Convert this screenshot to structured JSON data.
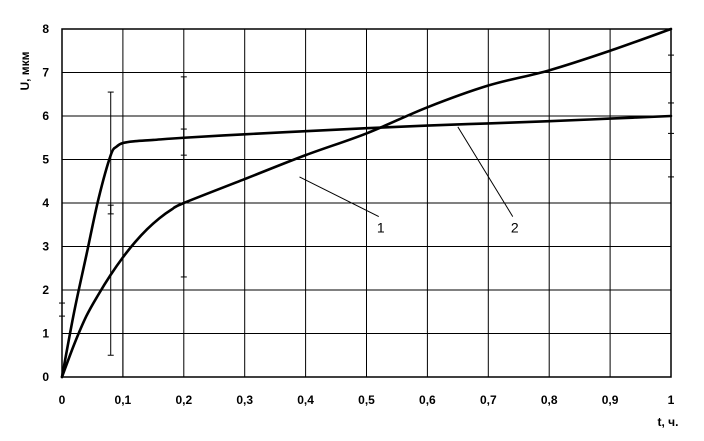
{
  "chart_data": {
    "type": "line",
    "xlabel": "t, ч.",
    "ylabel": "U, мкм",
    "xlim": [
      0,
      1
    ],
    "ylim": [
      0,
      8
    ],
    "x_ticks": [
      "0",
      "0,1",
      "0,2",
      "0,3",
      "0,4",
      "0,5",
      "0,6",
      "0,7",
      "0,8",
      "0,9",
      "1"
    ],
    "y_ticks": [
      "0",
      "1",
      "2",
      "3",
      "4",
      "5",
      "6",
      "7",
      "8"
    ],
    "grid": true,
    "series": [
      {
        "name": "1",
        "x": [
          0,
          0.02,
          0.04,
          0.06,
          0.08,
          0.1,
          0.12,
          0.14,
          0.16,
          0.18,
          0.2,
          0.3,
          0.4,
          0.5,
          0.6,
          0.7,
          0.8,
          0.9,
          1.0
        ],
        "y": [
          0,
          0.75,
          1.4,
          1.9,
          2.35,
          2.75,
          3.1,
          3.4,
          3.65,
          3.85,
          4.0,
          4.55,
          5.1,
          5.6,
          6.2,
          6.7,
          7.05,
          7.5,
          8.0
        ],
        "label_at": [
          0.39,
          4.6
        ]
      },
      {
        "name": "2",
        "x": [
          0,
          0.02,
          0.04,
          0.06,
          0.08,
          0.09,
          0.1,
          0.12,
          0.15,
          0.2,
          0.3,
          0.4,
          0.5,
          0.6,
          0.7,
          0.8,
          0.9,
          1.0
        ],
        "y": [
          0,
          1.5,
          2.8,
          4.1,
          5.1,
          5.3,
          5.38,
          5.42,
          5.45,
          5.5,
          5.58,
          5.65,
          5.72,
          5.78,
          5.83,
          5.88,
          5.94,
          6.0
        ],
        "label_at": [
          0.65,
          5.75
        ]
      }
    ],
    "error_bars": [
      {
        "x": 0.0,
        "low": 1.4,
        "high": 1.7
      },
      {
        "x": 0.08,
        "low": 0.5,
        "high": 6.55
      },
      {
        "x": 0.08,
        "low": 3.75,
        "high": 3.95
      },
      {
        "x": 0.1,
        "low": 0.0,
        "high": 4.0
      },
      {
        "x": 0.2,
        "low": 2.3,
        "high": 6.9
      },
      {
        "x": 0.2,
        "low": 5.1,
        "high": 5.7
      },
      {
        "x": 1.0,
        "low": 4.6,
        "high": 7.4
      },
      {
        "x": 1.0,
        "low": 5.6,
        "high": 6.3
      }
    ],
    "curve_labels": [
      {
        "text": "1",
        "at": [
          0.53,
          3.55
        ]
      },
      {
        "text": "2",
        "at": [
          0.75,
          3.55
        ]
      }
    ]
  }
}
